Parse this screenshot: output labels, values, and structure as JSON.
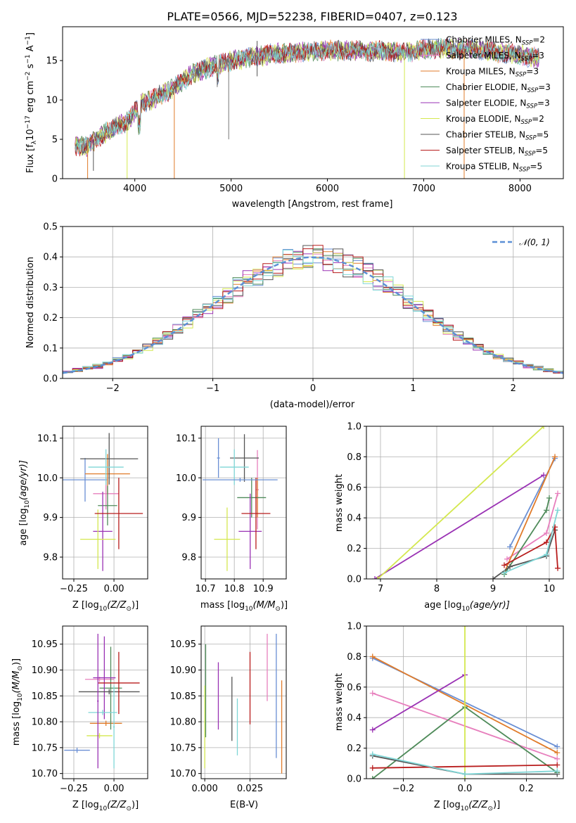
{
  "chart_data": [
    {
      "id": "spectrum",
      "type": "line",
      "title": "PLATE=0566, MJD=52238, FIBERID=0407, z=0.123",
      "xlabel": "wavelength [Angstrom, rest frame]",
      "ylabel": "Flux [f$_\\lambda$10$^{-17}$ erg cm$^{-2}$ s$^{-1}$ A$^{-1}$]",
      "ylabel_parts": [
        "Flux [f",
        "λ",
        "10",
        "−17",
        " erg cm",
        "−2",
        " s",
        "−1",
        " A",
        "−1",
        "]"
      ],
      "xlim": [
        3250,
        8450
      ],
      "ylim": [
        0,
        19.3
      ],
      "xticks": [
        4000,
        5000,
        6000,
        7000,
        8000
      ],
      "yticks": [
        0,
        5,
        10,
        15
      ],
      "grid": false,
      "legend_placement": "top-right",
      "continuum": {
        "x": [
          3380,
          3500,
          3650,
          3800,
          3950,
          4050,
          4200,
          4400,
          4600,
          4800,
          5000,
          5200,
          5400,
          5600,
          5800,
          6000,
          6200,
          6400,
          6600,
          6800,
          7000,
          7200,
          7400,
          7600,
          7800,
          8000,
          8200
        ],
        "y": [
          4.2,
          4.0,
          5.5,
          6.5,
          7.5,
          9.5,
          10.2,
          11.5,
          13.3,
          14.2,
          15.0,
          15.4,
          15.8,
          16.0,
          16.2,
          16.3,
          16.3,
          16.2,
          16.2,
          16.0,
          16.4,
          16.6,
          16.5,
          16.3,
          16.0,
          15.7,
          15.3
        ]
      },
      "series": [
        {
          "name_main": "Chabrier MILES, N",
          "sub": "SSP",
          "n": "=2",
          "color": "#6a8fd4"
        },
        {
          "name_main": "Salpeter MILES, N",
          "sub": "SSP",
          "n": "=3",
          "color": "#e77fbd"
        },
        {
          "name_main": "Kroupa MILES, N",
          "sub": "SSP",
          "n": "=3",
          "color": "#e07b2a"
        },
        {
          "name_main": "Chabrier ELODIE, N",
          "sub": "SSP",
          "n": "=3",
          "color": "#4f8b5a"
        },
        {
          "name_main": "Salpeter ELODIE, N",
          "sub": "SSP",
          "n": "=3",
          "color": "#9a32b4"
        },
        {
          "name_main": "Kroupa ELODIE, N",
          "sub": "SSP",
          "n": "=2",
          "color": "#d4e84f"
        },
        {
          "name_main": "Chabrier STELIB, N",
          "sub": "SSP",
          "n": "=5",
          "color": "#555555"
        },
        {
          "name_main": "Salpeter STELIB, N",
          "sub": "SSP",
          "n": "=5",
          "color": "#b81c1c"
        },
        {
          "name_main": "Kroupa STELIB, N",
          "sub": "SSP",
          "n": "=5",
          "color": "#7fd6d6"
        }
      ]
    },
    {
      "id": "residuals",
      "type": "line",
      "xlabel": "(data-model)/error",
      "ylabel": "Normed distribution",
      "xlim": [
        -2.5,
        2.5
      ],
      "ylim": [
        0,
        0.5
      ],
      "xticks": [
        -2,
        -1,
        0,
        1,
        2
      ],
      "yticks": [
        0.0,
        0.1,
        0.2,
        0.3,
        0.4,
        0.5
      ],
      "grid": true,
      "legend_placement": "top-right",
      "legend": "𝒩(0, 1)",
      "gaussian_color": "#5b8fd6",
      "hist_colors": [
        "#6a8fd4",
        "#e77fbd",
        "#e07b2a",
        "#4f8b5a",
        "#9a32b4",
        "#d4e84f",
        "#555555",
        "#b81c1c",
        "#7fd6d6"
      ]
    },
    {
      "id": "age_vs_Z",
      "type": "scatter",
      "xlabel": "Z [log$_{10}$(Z/Z$_\\odot$)]",
      "ylabel": "age  [log$_{10}$(age/yr)]",
      "xlim": [
        -0.32,
        0.21
      ],
      "ylim": [
        9.745,
        10.13
      ],
      "xticks": [
        -0.25,
        0.0
      ],
      "xtick_labels": [
        "−0.25",
        "0.00"
      ],
      "yticks": [
        9.8,
        9.9,
        10.0,
        10.1
      ],
      "grid": true,
      "points": [
        {
          "x": -0.18,
          "xerr": 0.14,
          "y": 9.995,
          "yerr": 0.055,
          "color": "#6a8fd4"
        },
        {
          "x": -0.05,
          "xerr": 0.08,
          "y": 9.96,
          "yerr": 0.04,
          "color": "#e77fbd"
        },
        {
          "x": -0.04,
          "xerr": 0.14,
          "y": 10.01,
          "yerr": 0.05,
          "color": "#e07b2a"
        },
        {
          "x": -0.04,
          "xerr": 0.06,
          "y": 9.93,
          "yerr": 0.05,
          "color": "#4f8b5a"
        },
        {
          "x": -0.07,
          "xerr": 0.06,
          "y": 9.865,
          "yerr": 0.1,
          "color": "#9a32b4"
        },
        {
          "x": -0.1,
          "xerr": 0.11,
          "y": 9.845,
          "yerr": 0.075,
          "color": "#d4e84f"
        },
        {
          "x": -0.03,
          "xerr": 0.18,
          "y": 10.048,
          "yerr": 0.065,
          "color": "#555555"
        },
        {
          "x": 0.03,
          "xerr": 0.15,
          "y": 9.91,
          "yerr": 0.09,
          "color": "#b81c1c"
        },
        {
          "x": -0.05,
          "xerr": 0.11,
          "y": 10.027,
          "yerr": 0.045,
          "color": "#7fd6d6"
        }
      ]
    },
    {
      "id": "age_vs_mass",
      "type": "scatter",
      "xlabel": "mass [log$_{10}$(M/M$_\\odot$)]",
      "xlim": [
        10.685,
        10.98
      ],
      "ylim": [
        9.745,
        10.13
      ],
      "xticks": [
        10.7,
        10.8,
        10.9
      ],
      "xtick_labels": [
        "10.7",
        "10.8",
        "10.9"
      ],
      "yticks": [
        9.8,
        9.9,
        10.0,
        10.1
      ],
      "grid": true,
      "points": [
        {
          "x": 10.745,
          "xerr": 0.005,
          "y": 10.05,
          "yerr": 0.05,
          "color": "#6a8fd4"
        },
        {
          "x": 10.88,
          "xerr": 0.005,
          "y": 9.97,
          "yerr": 0.1,
          "color": "#e77fbd"
        },
        {
          "x": 10.88,
          "xerr": 0.005,
          "y": 9.95,
          "yerr": 0.05,
          "color": "#e07b2a"
        },
        {
          "x": 10.86,
          "xerr": 0.05,
          "y": 9.95,
          "yerr": 0.05,
          "color": "#4f8b5a"
        },
        {
          "x": 10.855,
          "xerr": 0.04,
          "y": 9.865,
          "yerr": 0.095,
          "color": "#9a32b4"
        },
        {
          "x": 10.775,
          "xerr": 0.045,
          "y": 9.845,
          "yerr": 0.08,
          "color": "#d4e84f"
        },
        {
          "x": 10.835,
          "xerr": 0.05,
          "y": 10.05,
          "yerr": 0.06,
          "color": "#555555"
        },
        {
          "x": 10.875,
          "xerr": 0.05,
          "y": 9.91,
          "yerr": 0.09,
          "color": "#b81c1c"
        },
        {
          "x": 10.8,
          "xerr": 0.05,
          "y": 10.027,
          "yerr": 0.045,
          "color": "#7fd6d6"
        },
        {
          "x": 10.82,
          "xerr": 0.13,
          "y": 9.995,
          "yerr": 0.005,
          "color": "#6a8fd4"
        }
      ]
    },
    {
      "id": "massweight_vs_age",
      "type": "line",
      "xlabel": "age  [log$_{10}$(age/yr)]",
      "ylabel": "mass weight",
      "xlim": [
        6.75,
        10.25
      ],
      "ylim": [
        0,
        1.0
      ],
      "xticks": [
        7,
        8,
        9,
        10
      ],
      "yticks": [
        0.0,
        0.2,
        0.4,
        0.6,
        0.8,
        1.0
      ],
      "grid": true,
      "series": [
        {
          "color": "#6a8fd4",
          "x": [
            9.3,
            10.1
          ],
          "y": [
            0.21,
            0.79
          ]
        },
        {
          "color": "#e77fbd",
          "x": [
            9.25,
            9.95,
            10.15
          ],
          "y": [
            0.13,
            0.3,
            0.56
          ]
        },
        {
          "color": "#e07b2a",
          "x": [
            9.2,
            10.1
          ],
          "y": [
            0.04,
            0.8
          ]
        },
        {
          "color": "#4f8b5a",
          "x": [
            9.2,
            9.95,
            10.0
          ],
          "y": [
            0.03,
            0.45,
            0.53
          ]
        },
        {
          "color": "#9a32b4",
          "x": [
            6.9,
            9.9
          ],
          "y": [
            0.0,
            0.68
          ]
        },
        {
          "color": "#d4e84f",
          "x": [
            6.95,
            9.9
          ],
          "y": [
            0.0,
            1.0
          ]
        },
        {
          "color": "#555555",
          "x": [
            9.0,
            9.3,
            9.95,
            10.1
          ],
          "y": [
            0.0,
            0.08,
            0.15,
            0.32
          ]
        },
        {
          "color": "#b81c1c",
          "x": [
            9.2,
            9.95,
            10.1,
            10.15
          ],
          "y": [
            0.09,
            0.24,
            0.34,
            0.07
          ]
        },
        {
          "color": "#7fd6d6",
          "x": [
            9.2,
            9.95,
            10.15
          ],
          "y": [
            0.04,
            0.16,
            0.45
          ]
        }
      ]
    },
    {
      "id": "mass_vs_Z",
      "type": "scatter",
      "xlabel": "Z [log$_{10}$(Z/Z$_\\odot$)]",
      "ylabel": "mass [log$_{10}$(M/M$_\\odot$)]",
      "xlim": [
        -0.32,
        0.21
      ],
      "ylim": [
        10.69,
        10.985
      ],
      "xticks": [
        -0.25,
        0.0
      ],
      "xtick_labels": [
        "−0.25",
        "0.00"
      ],
      "yticks": [
        10.7,
        10.75,
        10.8,
        10.85,
        10.9,
        10.95
      ],
      "grid": true,
      "points": [
        {
          "x": -0.23,
          "xerr": 0.08,
          "y": 10.745,
          "yerr": 0.005,
          "color": "#6a8fd4"
        },
        {
          "x": -0.09,
          "xerr": 0.09,
          "y": 10.882,
          "yerr": 0.005,
          "color": "#e77fbd"
        },
        {
          "x": -0.05,
          "xerr": 0.1,
          "y": 10.797,
          "yerr": 0.005,
          "color": "#e07b2a"
        },
        {
          "x": -0.02,
          "xerr": 0.07,
          "y": 10.865,
          "yerr": 0.08,
          "color": "#4f8b5a"
        },
        {
          "x": -0.06,
          "xerr": 0.07,
          "y": 10.885,
          "yerr": 0.08,
          "color": "#9a32b4"
        },
        {
          "x": -0.09,
          "xerr": 0.08,
          "y": 10.773,
          "yerr": 0.005,
          "color": "#d4e84f"
        },
        {
          "x": -0.03,
          "xerr": 0.19,
          "y": 10.858,
          "yerr": 0.005,
          "color": "#555555"
        },
        {
          "x": 0.03,
          "xerr": 0.13,
          "y": 10.875,
          "yerr": 0.06,
          "color": "#b81c1c"
        },
        {
          "x": -0.07,
          "xerr": 0.09,
          "y": 10.818,
          "yerr": 0.005,
          "color": "#7fd6d6"
        },
        {
          "x": -0.1,
          "xerr": 0.005,
          "y": 10.84,
          "yerr": 0.13,
          "color": "#9a32b4"
        },
        {
          "x": 0.0,
          "xerr": 0.005,
          "y": 10.79,
          "yerr": 0.08,
          "color": "#7fd6d6"
        }
      ]
    },
    {
      "id": "mass_vs_EBV",
      "type": "scatter",
      "xlabel": "E(B-V)",
      "xlim": [
        -0.002,
        0.045
      ],
      "ylim": [
        10.69,
        10.985
      ],
      "xticks": [
        0.0,
        0.025
      ],
      "xtick_labels": [
        "0.000",
        "0.025"
      ],
      "yticks": [
        10.7,
        10.75,
        10.8,
        10.85,
        10.9,
        10.95
      ],
      "grid": true,
      "points": [
        {
          "x": 0.0,
          "xerr": 0.0,
          "y": 10.79,
          "yerr": 0.08,
          "color": "#d4e84f"
        },
        {
          "x": 0.0005,
          "xerr": 0.0,
          "y": 10.86,
          "yerr": 0.09,
          "color": "#4f8b5a"
        },
        {
          "x": 0.0075,
          "xerr": 0.0,
          "y": 10.85,
          "yerr": 0.065,
          "color": "#9a32b4"
        },
        {
          "x": 0.015,
          "xerr": 0.0,
          "y": 10.825,
          "yerr": 0.062,
          "color": "#555555"
        },
        {
          "x": 0.018,
          "xerr": 0.0,
          "y": 10.79,
          "yerr": 0.055,
          "color": "#7fd6d6"
        },
        {
          "x": 0.025,
          "xerr": 0.0,
          "y": 10.865,
          "yerr": 0.07,
          "color": "#b81c1c"
        },
        {
          "x": 0.0345,
          "xerr": 0.0,
          "y": 10.905,
          "yerr": 0.065,
          "color": "#e77fbd"
        },
        {
          "x": 0.0395,
          "xerr": 0.0,
          "y": 10.85,
          "yerr": 0.12,
          "color": "#6a8fd4"
        },
        {
          "x": 0.0425,
          "xerr": 0.0,
          "y": 10.79,
          "yerr": 0.09,
          "color": "#e07b2a"
        }
      ]
    },
    {
      "id": "massweight_vs_Z",
      "type": "line",
      "xlabel": "Z [log$_{10}$(Z/Z$_\\odot$)]",
      "ylabel": "mass weight",
      "xlim": [
        -0.32,
        0.32
      ],
      "ylim": [
        0,
        1.0
      ],
      "xticks": [
        -0.2,
        0.0,
        0.2
      ],
      "xtick_labels": [
        "−0.2",
        "0.0",
        "0.2"
      ],
      "yticks": [
        0.0,
        0.2,
        0.4,
        0.6,
        0.8,
        1.0
      ],
      "grid": true,
      "series": [
        {
          "color": "#6a8fd4",
          "x": [
            -0.3,
            0.3
          ],
          "y": [
            0.79,
            0.21
          ]
        },
        {
          "color": "#e77fbd",
          "x": [
            -0.3,
            0.3
          ],
          "y": [
            0.56,
            0.13
          ]
        },
        {
          "color": "#e07b2a",
          "x": [
            -0.3,
            0.3
          ],
          "y": [
            0.8,
            0.17
          ]
        },
        {
          "color": "#4f8b5a",
          "x": [
            -0.3,
            0.0,
            0.3
          ],
          "y": [
            0.0,
            0.47,
            0.04
          ]
        },
        {
          "color": "#9a32b4",
          "x": [
            -0.3,
            0.0
          ],
          "y": [
            0.32,
            0.68
          ]
        },
        {
          "color": "#d4e84f",
          "x": [
            0.0,
            0.0
          ],
          "y": [
            0.0,
            1.0
          ]
        },
        {
          "color": "#555555",
          "x": [
            -0.3,
            0.0,
            0.3
          ],
          "y": [
            0.15,
            0.03,
            0.03
          ]
        },
        {
          "color": "#b81c1c",
          "x": [
            -0.3,
            0.3
          ],
          "y": [
            0.07,
            0.09
          ]
        },
        {
          "color": "#7fd6d6",
          "x": [
            -0.3,
            0.0,
            0.3
          ],
          "y": [
            0.16,
            0.03,
            0.05
          ]
        }
      ]
    }
  ],
  "labels": {
    "spectrum_title": "PLATE=0566, MJD=52238, FIBERID=0407, z=0.123",
    "spectrum_xlabel": "wavelength [Angstrom, rest frame]",
    "residual_xlabel": "(data-model)/error",
    "residual_ylabel": "Normed distribution",
    "gauss_legend": "𝒩(0, 1)",
    "age_ylabel_pre": "age  [log",
    "age_ylabel_sub": "10",
    "age_ylabel_post": "(age/yr)]",
    "z_xlabel_pre": "Z [log",
    "z_xlabel_sub": "10",
    "z_xlabel_post": "(Z/Z",
    "z_xlabel_sun": "⊙",
    "z_xlabel_end": ")]",
    "mass_xlabel_pre": "mass [log",
    "mass_xlabel_sub": "10",
    "mass_xlabel_post": "(M/M",
    "mass_xlabel_sun": "⊙",
    "mass_xlabel_end": ")]",
    "mass_ylabel_pre": "mass [log",
    "mass_ylabel_sub": "10",
    "mass_ylabel_post": "(M/M",
    "mass_ylabel_sun": "⊙",
    "mass_ylabel_end": ")]",
    "massweight_ylabel": "mass weight",
    "ebv_xlabel": "E(B-V)"
  }
}
